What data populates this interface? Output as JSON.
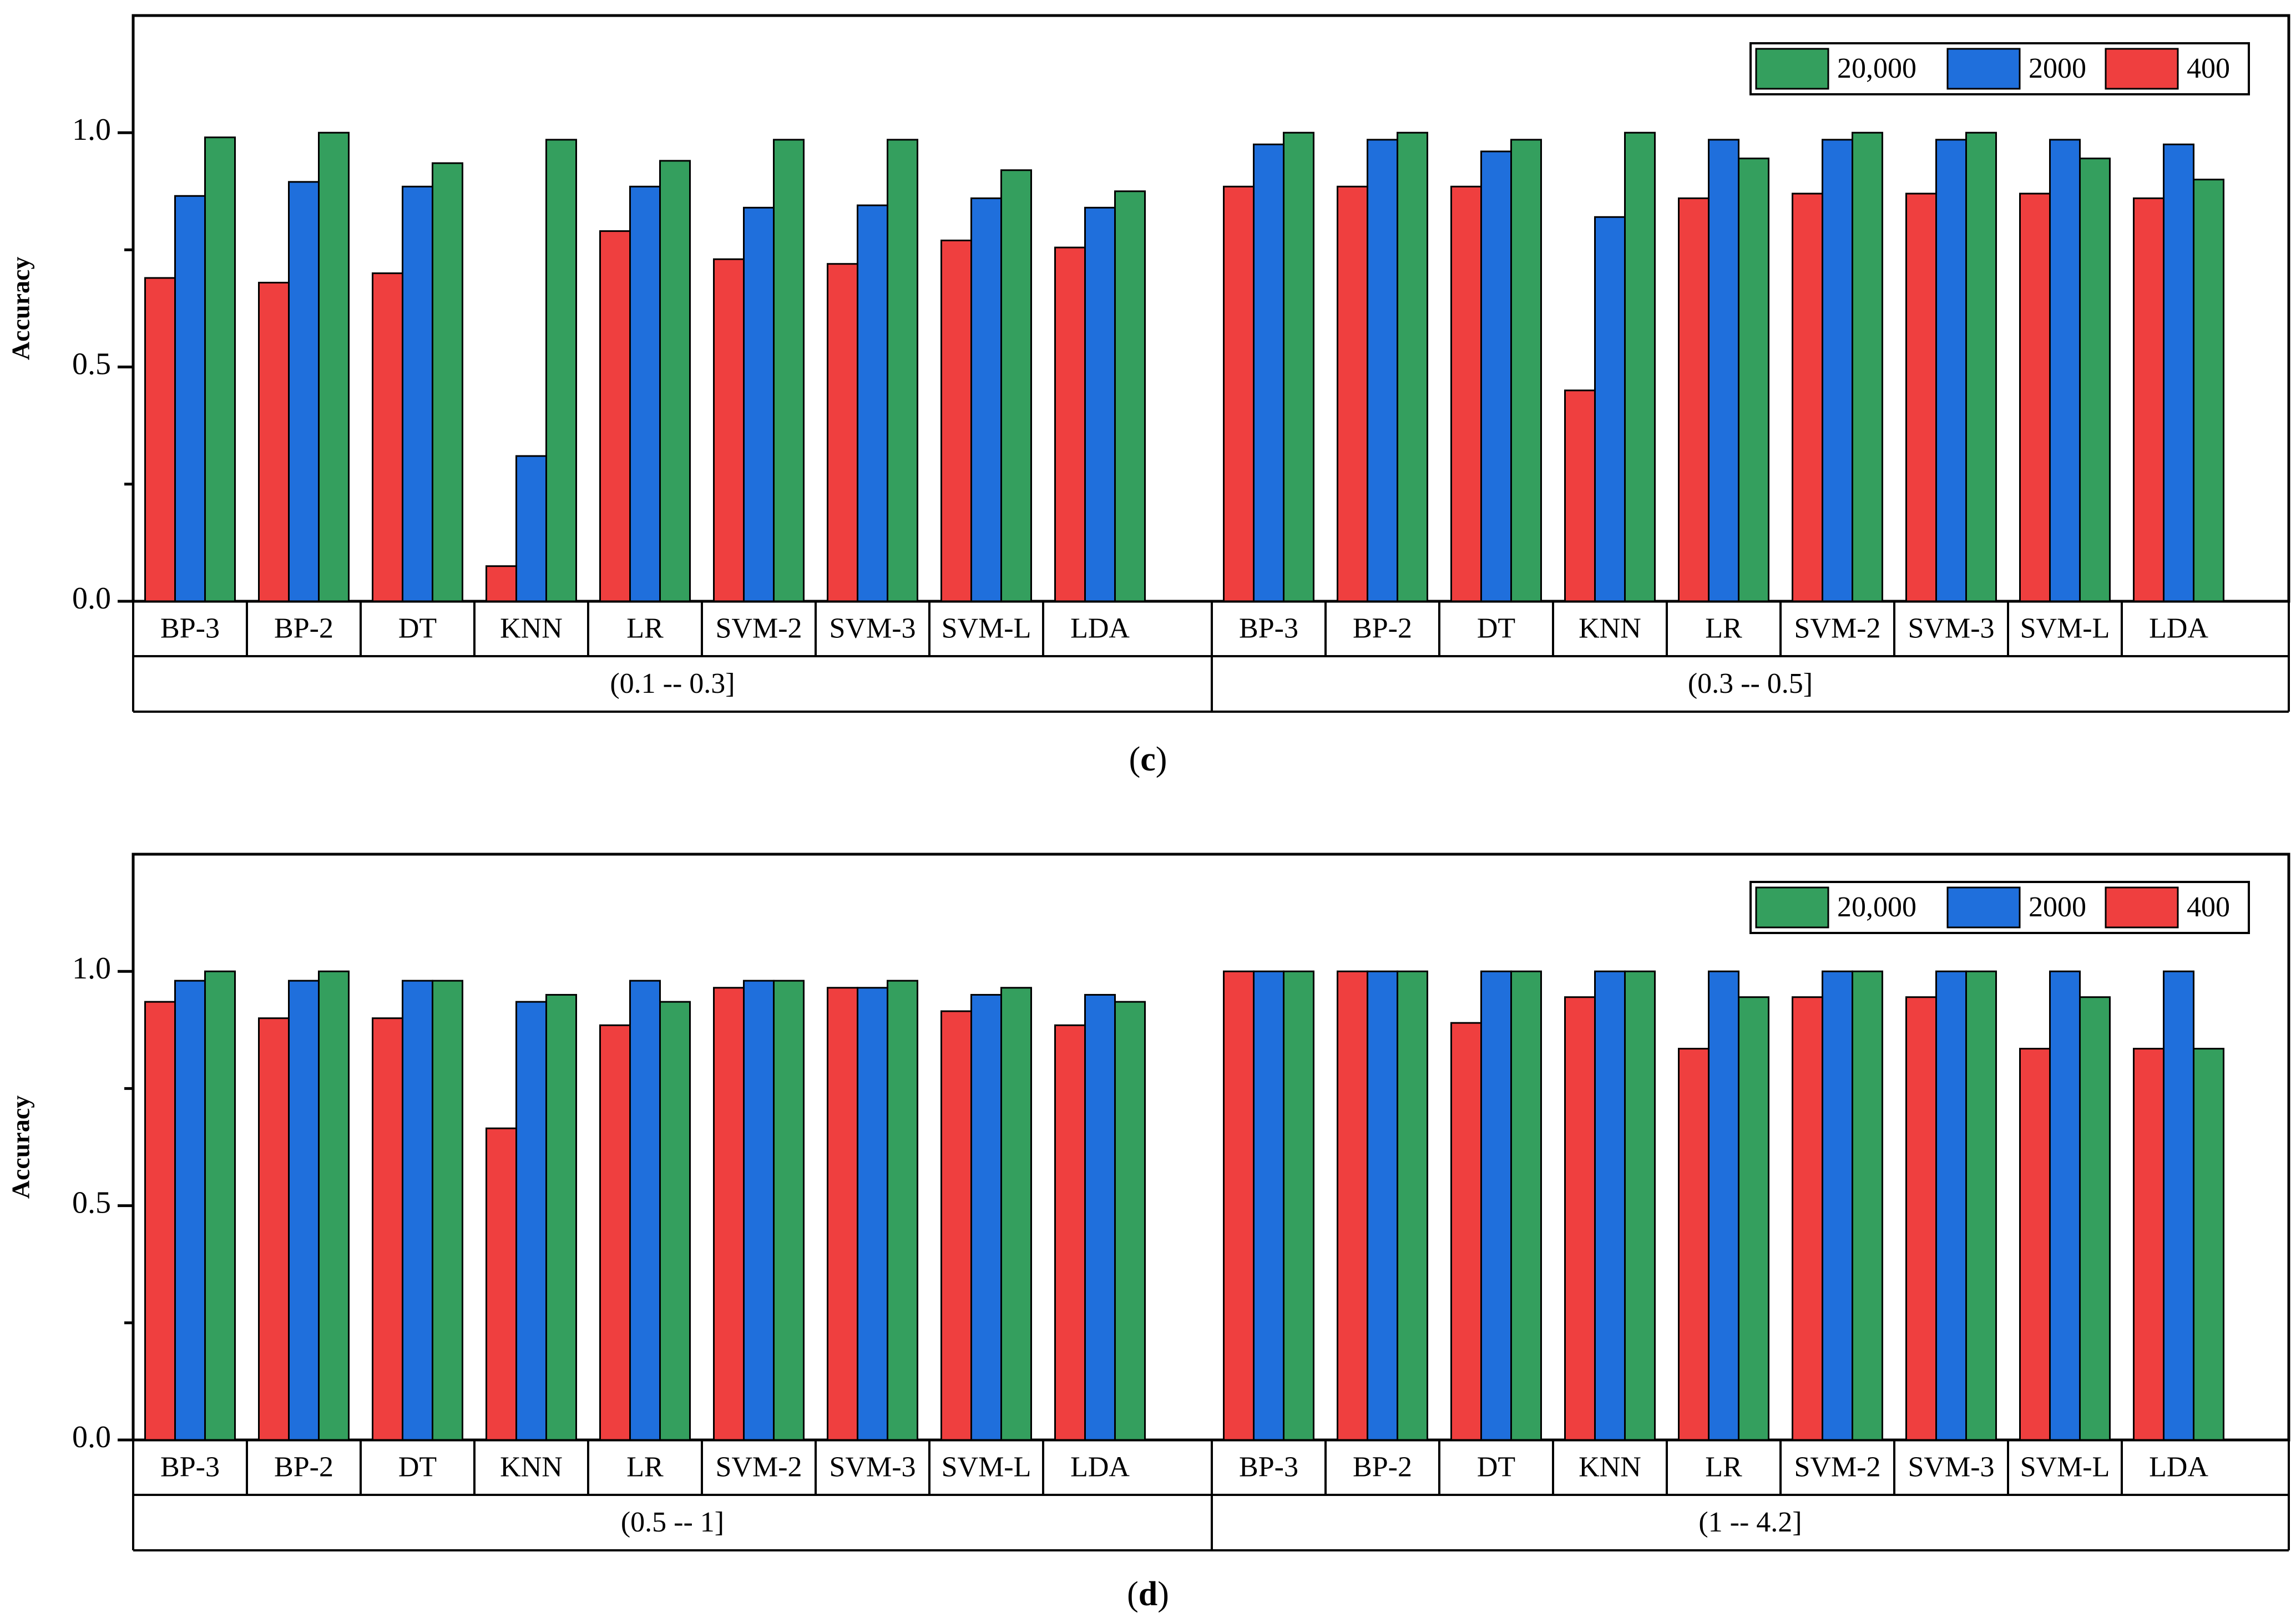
{
  "colors": {
    "s20000": "#349f5e",
    "s2000": "#1f6fdc",
    "s400": "#ef3f3f"
  },
  "chart_data": [
    {
      "type": "bar",
      "panel": "c",
      "ylabel": "Accuracy",
      "ylim": [
        0,
        1.25
      ],
      "yticks": [
        "0.0",
        "0.5",
        "1.0"
      ],
      "legend": [
        "20,000",
        "2000",
        "400"
      ],
      "groups": [
        {
          "label": "(0.1 -- 0.3]",
          "categories": [
            "BP-3",
            "BP-2",
            "DT",
            "KNN",
            "LR",
            "SVM-2",
            "SVM-3",
            "SVM-L",
            "LDA"
          ],
          "series": [
            {
              "name": "400",
              "values": [
                0.69,
                0.68,
                0.7,
                0.075,
                0.79,
                0.73,
                0.72,
                0.77,
                0.755
              ]
            },
            {
              "name": "2000",
              "values": [
                0.865,
                0.895,
                0.885,
                0.31,
                0.885,
                0.84,
                0.845,
                0.86,
                0.84
              ]
            },
            {
              "name": "20,000",
              "values": [
                0.99,
                1.0,
                0.935,
                0.985,
                0.94,
                0.985,
                0.985,
                0.92,
                0.875
              ]
            }
          ]
        },
        {
          "label": "(0.3 -- 0.5]",
          "categories": [
            "BP-3",
            "BP-2",
            "DT",
            "KNN",
            "LR",
            "SVM-2",
            "SVM-3",
            "SVM-L",
            "LDA"
          ],
          "series": [
            {
              "name": "400",
              "values": [
                0.885,
                0.885,
                0.885,
                0.45,
                0.86,
                0.87,
                0.87,
                0.87,
                0.86
              ]
            },
            {
              "name": "2000",
              "values": [
                0.975,
                0.985,
                0.96,
                0.82,
                0.985,
                0.985,
                0.985,
                0.985,
                0.975
              ]
            },
            {
              "name": "20,000",
              "values": [
                1.0,
                1.0,
                0.985,
                1.0,
                0.945,
                1.0,
                1.0,
                0.945,
                0.9
              ]
            }
          ]
        }
      ]
    },
    {
      "type": "bar",
      "panel": "d",
      "ylabel": "Accuracy",
      "ylim": [
        0,
        1.25
      ],
      "yticks": [
        "0.0",
        "0.5",
        "1.0"
      ],
      "legend": [
        "20,000",
        "2000",
        "400"
      ],
      "groups": [
        {
          "label": "(0.5 -- 1]",
          "categories": [
            "BP-3",
            "BP-2",
            "DT",
            "KNN",
            "LR",
            "SVM-2",
            "SVM-3",
            "SVM-L",
            "LDA"
          ],
          "series": [
            {
              "name": "400",
              "values": [
                0.935,
                0.9,
                0.9,
                0.665,
                0.885,
                0.965,
                0.965,
                0.915,
                0.885
              ]
            },
            {
              "name": "2000",
              "values": [
                0.98,
                0.98,
                0.98,
                0.935,
                0.98,
                0.98,
                0.965,
                0.95,
                0.95
              ]
            },
            {
              "name": "20,000",
              "values": [
                1.0,
                1.0,
                0.98,
                0.95,
                0.935,
                0.98,
                0.98,
                0.965,
                0.935
              ]
            }
          ]
        },
        {
          "label": "(1 -- 4.2]",
          "categories": [
            "BP-3",
            "BP-2",
            "DT",
            "KNN",
            "LR",
            "SVM-2",
            "SVM-3",
            "SVM-L",
            "LDA"
          ],
          "series": [
            {
              "name": "400",
              "values": [
                1.0,
                1.0,
                0.89,
                0.945,
                0.835,
                0.945,
                0.945,
                0.835,
                0.835
              ]
            },
            {
              "name": "2000",
              "values": [
                1.0,
                1.0,
                1.0,
                1.0,
                1.0,
                1.0,
                1.0,
                1.0,
                1.0
              ]
            },
            {
              "name": "20,000",
              "values": [
                1.0,
                1.0,
                1.0,
                1.0,
                0.945,
                1.0,
                1.0,
                0.945,
                0.835
              ]
            }
          ]
        }
      ]
    }
  ]
}
